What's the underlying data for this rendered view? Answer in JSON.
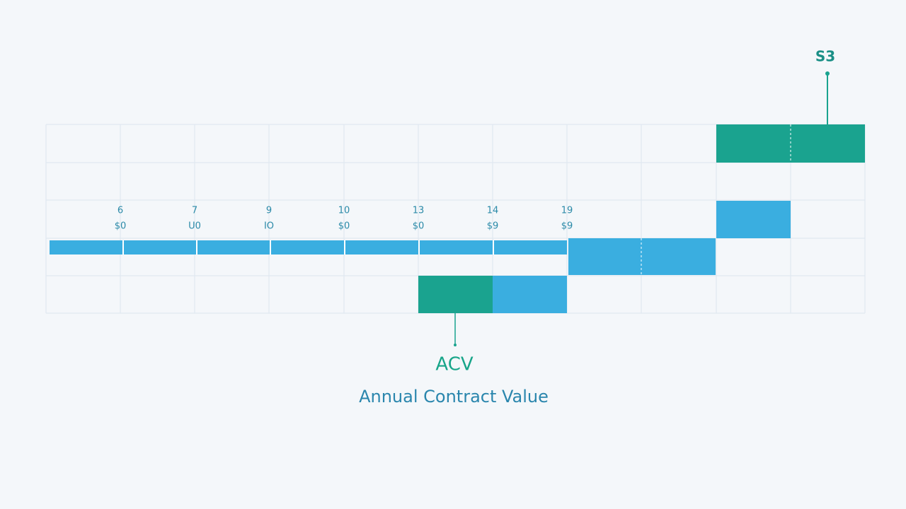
{
  "marker": {
    "label": "S3"
  },
  "column_labels": [
    {
      "top": "6",
      "bottom": "$0"
    },
    {
      "top": "7",
      "bottom": "U0"
    },
    {
      "top": "9",
      "bottom": "IO"
    },
    {
      "top": "10",
      "bottom": "$0"
    },
    {
      "top": "13",
      "bottom": "$0"
    },
    {
      "top": "14",
      "bottom": "$9"
    },
    {
      "top": "19",
      "bottom": "$9"
    }
  ],
  "caption": {
    "abbr": "ACV",
    "full": "Annual Contract Value"
  }
}
